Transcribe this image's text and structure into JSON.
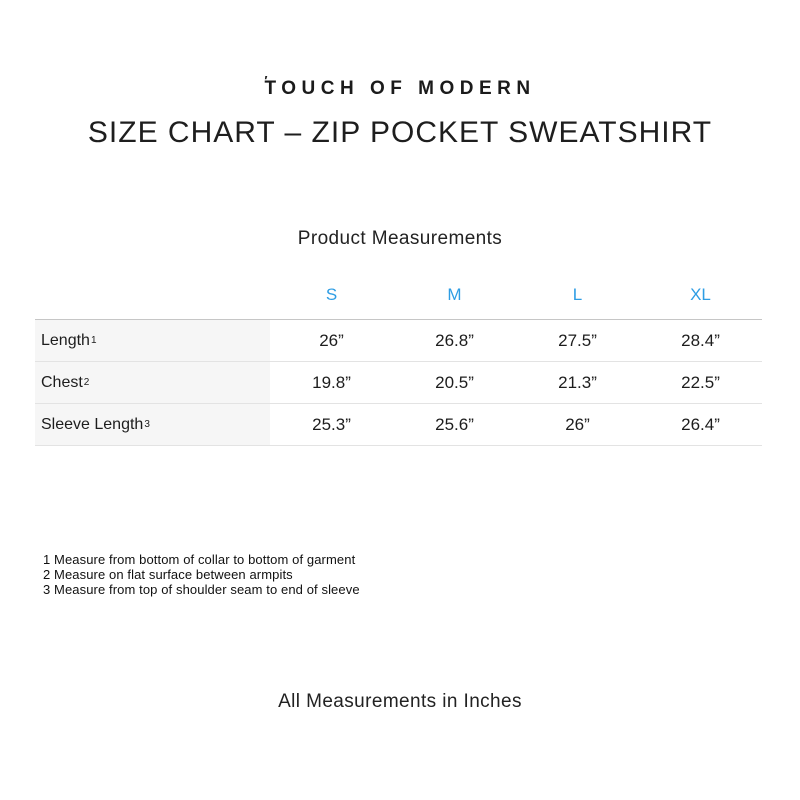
{
  "brand": {
    "mark": "′",
    "name": "TOUCH OF MODERN"
  },
  "page_title": "SIZE CHART – ZIP POCKET SWEATSHIRT",
  "chart_data": {
    "type": "table",
    "title": "Product Measurements",
    "columns": [
      "S",
      "M",
      "L",
      "XL"
    ],
    "rows": [
      {
        "label": "Length",
        "footnote": "1",
        "values": [
          "26”",
          "26.8”",
          "27.5”",
          "28.4”"
        ]
      },
      {
        "label": "Chest",
        "footnote": "2",
        "values": [
          "19.8”",
          "20.5”",
          "21.3”",
          "22.5”"
        ]
      },
      {
        "label": "Sleeve Length",
        "footnote": "3",
        "values": [
          "25.3”",
          "25.6”",
          "26”",
          "26.4”"
        ]
      }
    ]
  },
  "footnotes": [
    "1 Measure from bottom of collar to bottom of garment",
    "2 Measure on flat surface between armpits",
    "3 Measure from top of shoulder seam to end of sleeve"
  ],
  "footer_note": "All Measurements in Inches",
  "colors": {
    "size_header_blue": "#2E9DE4",
    "label_column_bg": "#F6F6F6",
    "row_divider": "#E3E3E3",
    "table_top_border": "#C6C6C6"
  }
}
